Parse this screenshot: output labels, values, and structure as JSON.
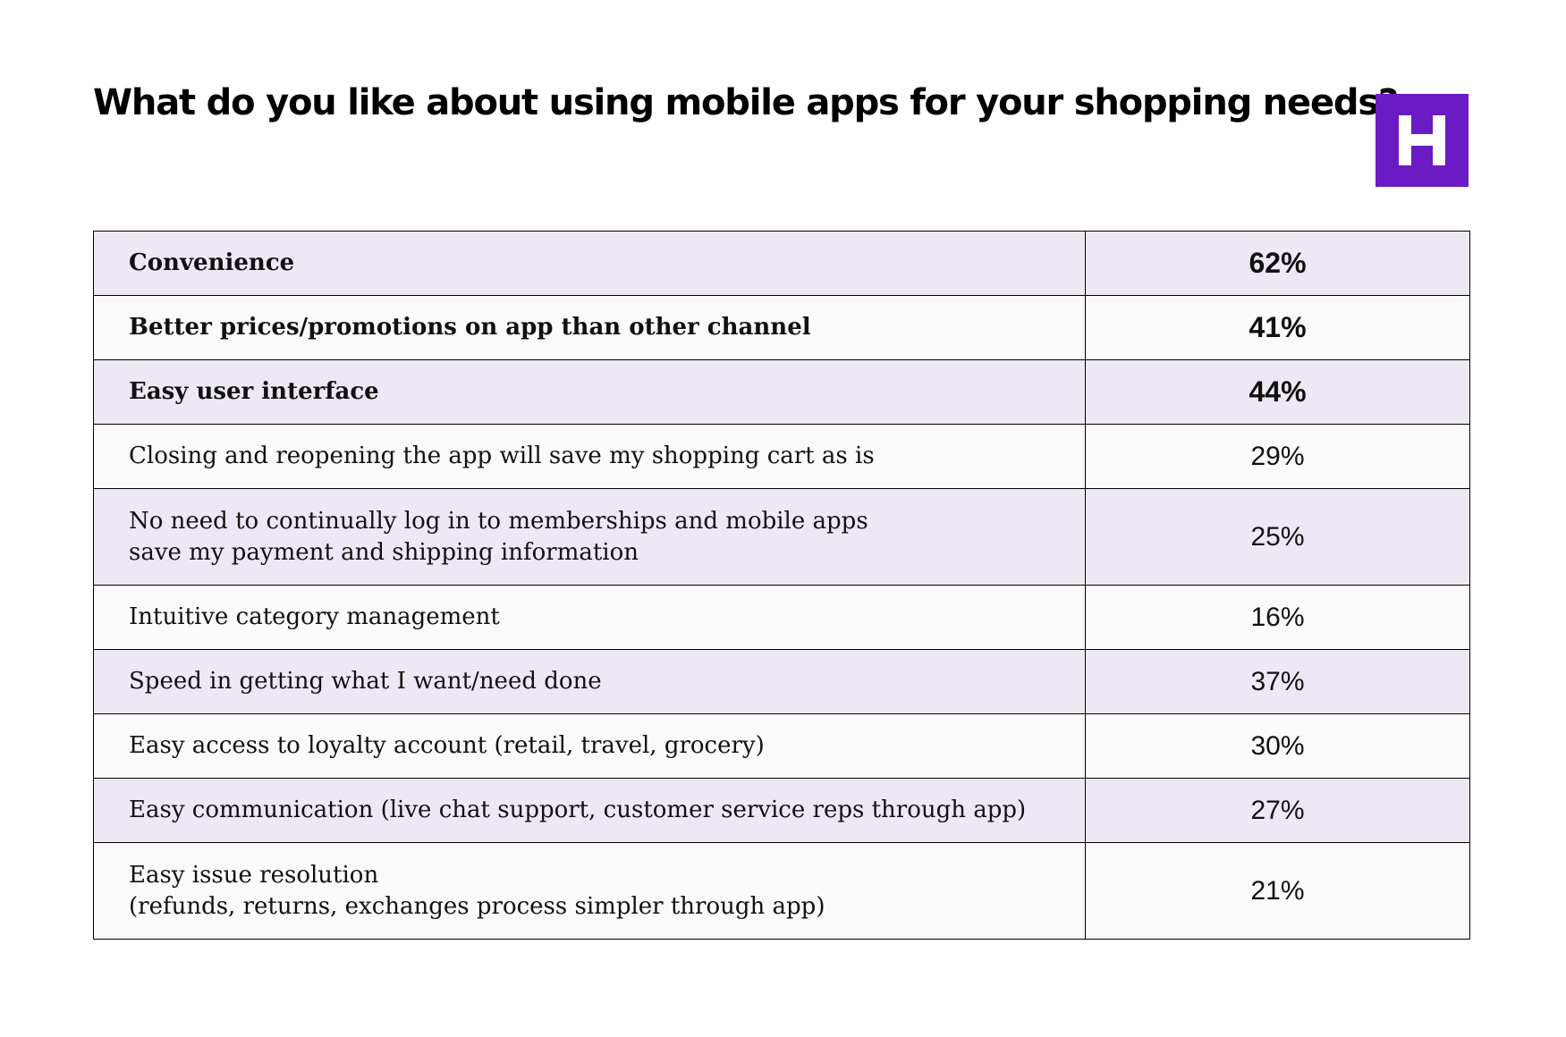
{
  "title": "What do you like about using mobile apps for your shopping needs?",
  "logo": {
    "letter": "H",
    "color": "#6a1bc4",
    "icon": "brand-h-logo"
  },
  "colors": {
    "row_shaded": "#ede8f3",
    "row_plain": "#fafafa",
    "border": "#000000"
  },
  "chart_data": {
    "type": "table",
    "title": "What do you like about using mobile apps for your shopping needs?",
    "columns": [
      "label",
      "value"
    ],
    "rows": [
      {
        "label": "Convenience",
        "value": "62%",
        "percent": 62,
        "emphasis": true,
        "shaded": true
      },
      {
        "label": "Better prices/promotions on app than other channel",
        "value": "41%",
        "percent": 41,
        "emphasis": true,
        "shaded": false
      },
      {
        "label": "Easy user interface",
        "value": "44%",
        "percent": 44,
        "emphasis": true,
        "shaded": true
      },
      {
        "label": "Closing and reopening the app will save my shopping cart as is",
        "value": "29%",
        "percent": 29,
        "emphasis": false,
        "shaded": false
      },
      {
        "label": "No need to continually log in to memberships and mobile apps\nsave my payment and shipping information",
        "value": "25%",
        "percent": 25,
        "emphasis": false,
        "shaded": true
      },
      {
        "label": "Intuitive category management",
        "value": "16%",
        "percent": 16,
        "emphasis": false,
        "shaded": false
      },
      {
        "label": "Speed in getting what I want/need done",
        "value": "37%",
        "percent": 37,
        "emphasis": false,
        "shaded": true
      },
      {
        "label": "Easy access to loyalty account (retail, travel, grocery)",
        "value": "30%",
        "percent": 30,
        "emphasis": false,
        "shaded": false
      },
      {
        "label": "Easy communication (live chat support, customer service reps through app)",
        "value": "27%",
        "percent": 27,
        "emphasis": false,
        "shaded": true
      },
      {
        "label": "Easy issue resolution\n(refunds, returns, exchanges process simpler through app)",
        "value": "21%",
        "percent": 21,
        "emphasis": false,
        "shaded": false
      }
    ]
  }
}
